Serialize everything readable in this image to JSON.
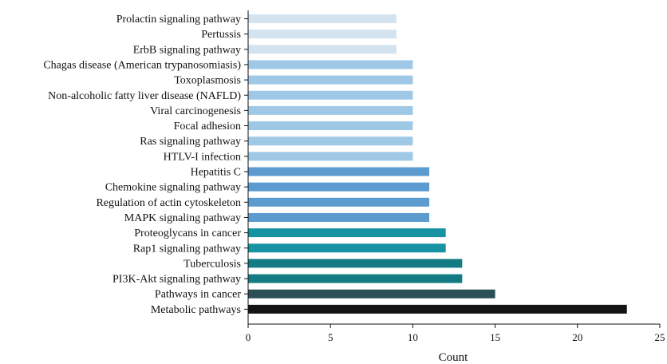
{
  "chart_data": {
    "type": "bar",
    "orientation": "horizontal",
    "xlabel": "Count",
    "xlim": [
      0,
      25
    ],
    "xticks": [
      0,
      5,
      10,
      15,
      20,
      25
    ],
    "grid": false,
    "categories": [
      "Prolactin signaling pathway",
      "Pertussis",
      "ErbB signaling pathway",
      "Chagas disease (American trypanosomiasis)",
      "Toxoplasmosis",
      "Non-alcoholic fatty liver disease (NAFLD)",
      "Viral carcinogenesis",
      "Focal adhesion",
      "Ras signaling pathway",
      "HTLV-I infection",
      "Hepatitis C",
      "Chemokine signaling pathway",
      "Regulation of actin cytoskeleton",
      "MAPK signaling pathway",
      "Proteoglycans in cancer",
      "Rap1 signaling pathway",
      "Tuberculosis",
      "PI3K-Akt signaling pathway",
      "Pathways in cancer",
      "Metabolic pathways"
    ],
    "values": [
      9,
      9,
      9,
      10,
      10,
      10,
      10,
      10,
      10,
      10,
      11,
      11,
      11,
      11,
      12,
      12,
      13,
      13,
      15,
      23
    ],
    "colors": [
      "#d3e3f0",
      "#d3e3f0",
      "#d3e3f0",
      "#9fc8e6",
      "#9fc8e6",
      "#9fc8e6",
      "#9fc8e6",
      "#9fc8e6",
      "#9fc8e6",
      "#9fc8e6",
      "#5b9bd0",
      "#5b9bd0",
      "#5b9bd0",
      "#5b9bd0",
      "#1593a3",
      "#1593a3",
      "#137b83",
      "#137b83",
      "#2c4e56",
      "#141414"
    ]
  }
}
